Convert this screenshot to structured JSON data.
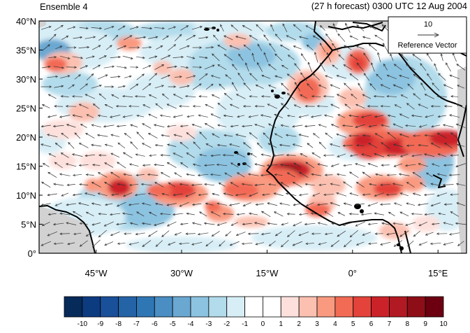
{
  "header": {
    "left_label": "Ensemble 4",
    "right_label": "(27 h forecast) 0300 UTC 12 Aug 2004"
  },
  "map": {
    "lat_ticks": [
      "40°N",
      "35°N",
      "30°N",
      "25°N",
      "20°N",
      "15°N",
      "10°N",
      "5°N",
      "0°"
    ],
    "lon_ticks": [
      "45°W",
      "30°W",
      "15°W",
      "0°",
      "15°E"
    ],
    "lon_range": [
      -55,
      20
    ],
    "lat_range": [
      0,
      40
    ],
    "reference_vector": {
      "value": "10",
      "label": "Reference Vector"
    }
  },
  "colorbar": {
    "labels": [
      "-10",
      "-9",
      "-8",
      "-7",
      "-6",
      "-5",
      "-4",
      "-3",
      "-2",
      "-1",
      "0",
      "1",
      "2",
      "3",
      "4",
      "5",
      "6",
      "7",
      "8",
      "9",
      "10"
    ],
    "colors": [
      "#062a59",
      "#0c3b80",
      "#1a4f99",
      "#2463a6",
      "#2f77b4",
      "#4a8ec4",
      "#6aa8d2",
      "#8cc3e0",
      "#b2dbeb",
      "#d8eef6",
      "#ffffff",
      "#ffffff",
      "#fde0dc",
      "#fbc0b0",
      "#f99a80",
      "#f26b54",
      "#e3433a",
      "#cb2229",
      "#b11a22",
      "#8e0e18",
      "#6c0011"
    ]
  }
}
